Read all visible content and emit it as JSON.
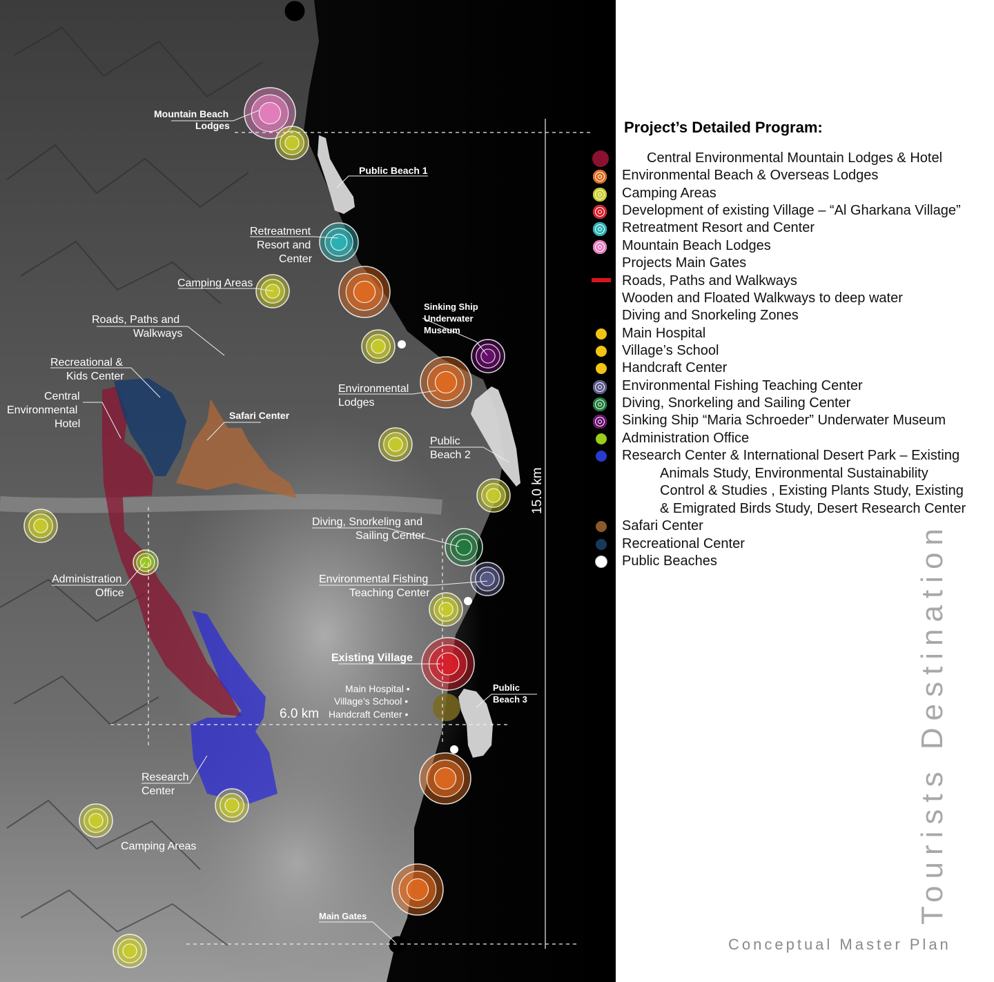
{
  "legend": {
    "title": "Project’s Detailed Program:",
    "items": [
      {
        "label": "Central Environmental Mountain Lodges & Hotel",
        "color": "#8a1230",
        "icon": "filled-circle-icon"
      },
      {
        "label": "Environmental Beach & Overseas Lodges",
        "color": "#e06a20",
        "icon": "concentric-circle-icon"
      },
      {
        "label": "Camping Areas",
        "color": "#c9cc2a",
        "icon": "concentric-circle-icon"
      },
      {
        "label": "Development of existing Village – “Al Gharkana Village”",
        "color": "#d81e2a",
        "icon": "concentric-circle-icon"
      },
      {
        "label": "Retreatment Resort and Center",
        "color": "#2ab3b6",
        "icon": "concentric-circle-icon"
      },
      {
        "label": "Mountain Beach Lodges",
        "color": "#e77fbf",
        "icon": "concentric-circle-icon"
      },
      {
        "label": "Projects Main Gates",
        "color": "#000000",
        "icon": "ring-icon"
      },
      {
        "label": "Roads, Paths and Walkways",
        "color": "#d8141c",
        "icon": "line-icon"
      },
      {
        "label": "Wooden and Floated Walkways to deep water",
        "color": "",
        "icon": "none"
      },
      {
        "label": "Diving and Snorkeling Zones",
        "color": "",
        "icon": "none"
      },
      {
        "label": "Main Hospital",
        "color": "#f2c414",
        "icon": "dot-icon"
      },
      {
        "label": "Village’s School",
        "color": "#f2c414",
        "icon": "dot-icon"
      },
      {
        "label": "Handcraft Center",
        "color": "#f2c414",
        "icon": "dot-icon"
      },
      {
        "label": "Environmental Fishing Teaching Center",
        "color": "#5a5a8a",
        "icon": "concentric-circle-icon"
      },
      {
        "label": "Diving, Snorkeling and Sailing Center",
        "color": "#1f7a3c",
        "icon": "concentric-circle-icon"
      },
      {
        "label": "Sinking Ship “Maria Schroeder” Underwater Museum",
        "color": "#6a0f6e",
        "icon": "concentric-circle-icon"
      },
      {
        "label": "Administration Office",
        "color": "#9ccc1e",
        "icon": "dot-icon"
      },
      {
        "label": "Research Center & International Desert Park – Existing",
        "color": "#2a3ad0",
        "icon": "dot-icon"
      },
      {
        "label": "Safari Center",
        "color": "#8a5a2a",
        "icon": "dot-icon"
      },
      {
        "label": "Recreational Center",
        "color": "#173a5a",
        "icon": "dot-icon"
      },
      {
        "label": "Public Beaches",
        "color": "#ffffff",
        "icon": "dot-icon"
      }
    ],
    "research_continuation": [
      "Animals Study, Environmental Sustainability",
      "Control & Studies , Existing Plants Study, Existing",
      "& Emigrated Birds Study, Desert Research Center"
    ]
  },
  "side_title": "Tourists Destination",
  "subtitle": "Conceptual Master Plan",
  "map": {
    "labels": {
      "mountain_beach_lodges": [
        "Mountain Beach",
        "Lodges"
      ],
      "public_beach_1": "Public Beach 1",
      "retreatment": [
        "Retreatment",
        "Resort and",
        "Center"
      ],
      "camping_areas_1": "Camping Areas",
      "roads": [
        "Roads, Paths and",
        "Walkways"
      ],
      "recreational": [
        "Recreational &",
        "Kids Center"
      ],
      "central_hotel": [
        "Central",
        "Environmental",
        "Hotel"
      ],
      "safari": "Safari Center",
      "sinking_ship": [
        "Sinking Ship",
        "Underwater",
        "Museum"
      ],
      "env_lodges": [
        "Environmental",
        "Lodges"
      ],
      "public_beach_2": [
        "Public",
        "Beach 2"
      ],
      "diving": [
        "Diving, Snorkeling and",
        "Sailing Center"
      ],
      "administration": [
        "Administration",
        "Office"
      ],
      "fishing": [
        "Environmental Fishing",
        "Teaching Center"
      ],
      "existing_village": "Existing Village",
      "main_hospital": "Main Hospital •",
      "villages_school": "Village’s School •",
      "handcraft": "Handcraft Center •",
      "public_beach_3": [
        "Public",
        "Beach 3"
      ],
      "research": [
        "Research",
        "Center"
      ],
      "camping_areas_2": "Camping Areas",
      "main_gates": "Main Gates"
    },
    "dimensions": {
      "length": "15.0 km",
      "width": "6.0 km"
    }
  }
}
